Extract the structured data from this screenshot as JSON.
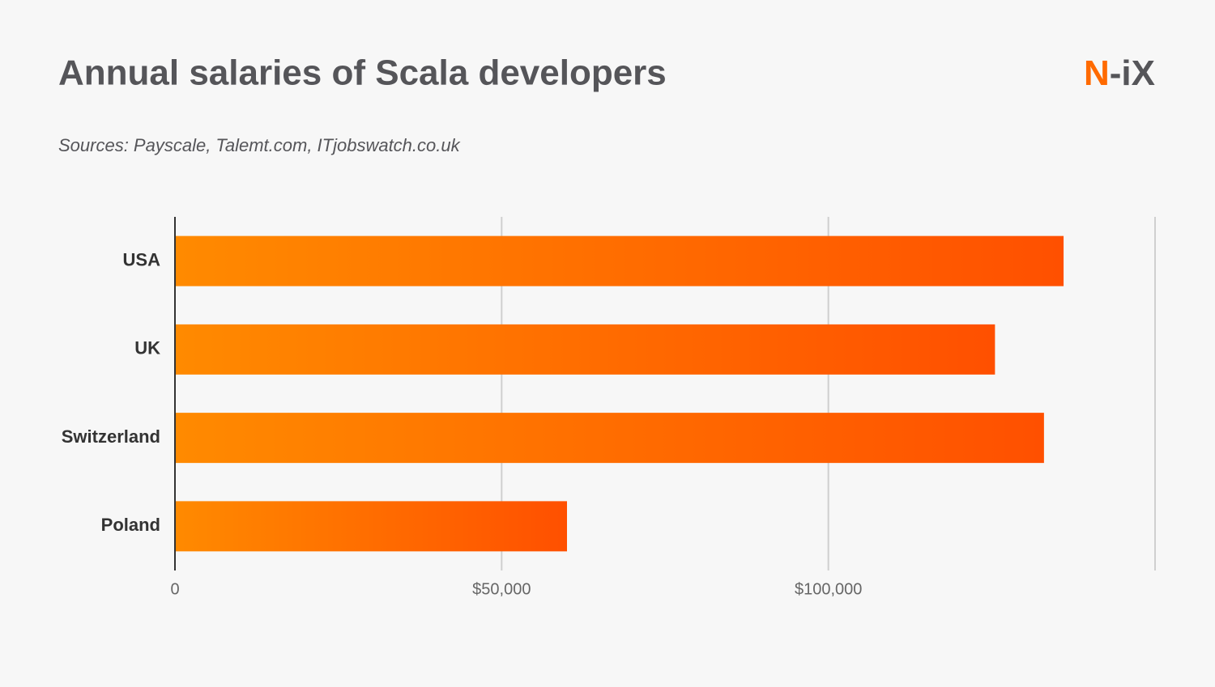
{
  "chart_data": {
    "type": "hbar",
    "title": "Annual salaries of Scala developers",
    "subtitle": "Sources: Payscale, Talemt.com, ITjobswatch.co.uk",
    "categories": [
      "USA",
      "UK",
      "Switzerland",
      "Poland"
    ],
    "values": [
      136000,
      125500,
      133000,
      60000
    ],
    "color": [
      "#ff8a00",
      "#ff5000"
    ],
    "xlim": [
      0,
      150000
    ],
    "xticks": [
      0,
      {
        "value": 50000,
        "label": "$50,000"
      },
      {
        "value": 100000,
        "label": "$100,000"
      }
    ],
    "grid": true
  },
  "logo": {
    "accent": "N",
    "rest": "-iX"
  }
}
